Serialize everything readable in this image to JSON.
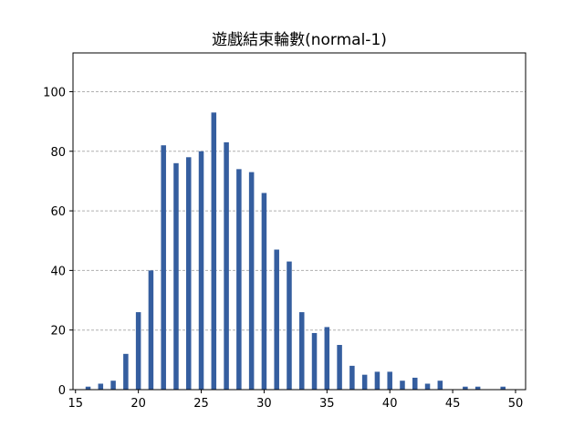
{
  "chart_data": {
    "type": "bar",
    "title": "遊戲結束輪數(normal-1)",
    "xlabel": "",
    "ylabel": "",
    "x": [
      16,
      17,
      18,
      19,
      20,
      21,
      22,
      23,
      24,
      25,
      26,
      27,
      28,
      29,
      30,
      31,
      32,
      33,
      34,
      35,
      36,
      37,
      38,
      39,
      40,
      41,
      42,
      43,
      44,
      46,
      47,
      49
    ],
    "values": [
      1,
      2,
      3,
      12,
      26,
      40,
      82,
      76,
      78,
      80,
      93,
      83,
      74,
      73,
      66,
      47,
      43,
      26,
      19,
      21,
      15,
      8,
      5,
      6,
      6,
      3,
      4,
      2,
      3,
      1,
      1,
      1
    ],
    "xlim": [
      14.8,
      50.8
    ],
    "ylim": [
      0,
      113
    ],
    "xticks": [
      15,
      20,
      25,
      30,
      35,
      40,
      45,
      50
    ],
    "yticks": [
      0,
      20,
      40,
      60,
      80,
      100
    ],
    "grid": "y-dashed",
    "bar_color": "#355e9f",
    "grid_color": "#b0b0b0"
  }
}
